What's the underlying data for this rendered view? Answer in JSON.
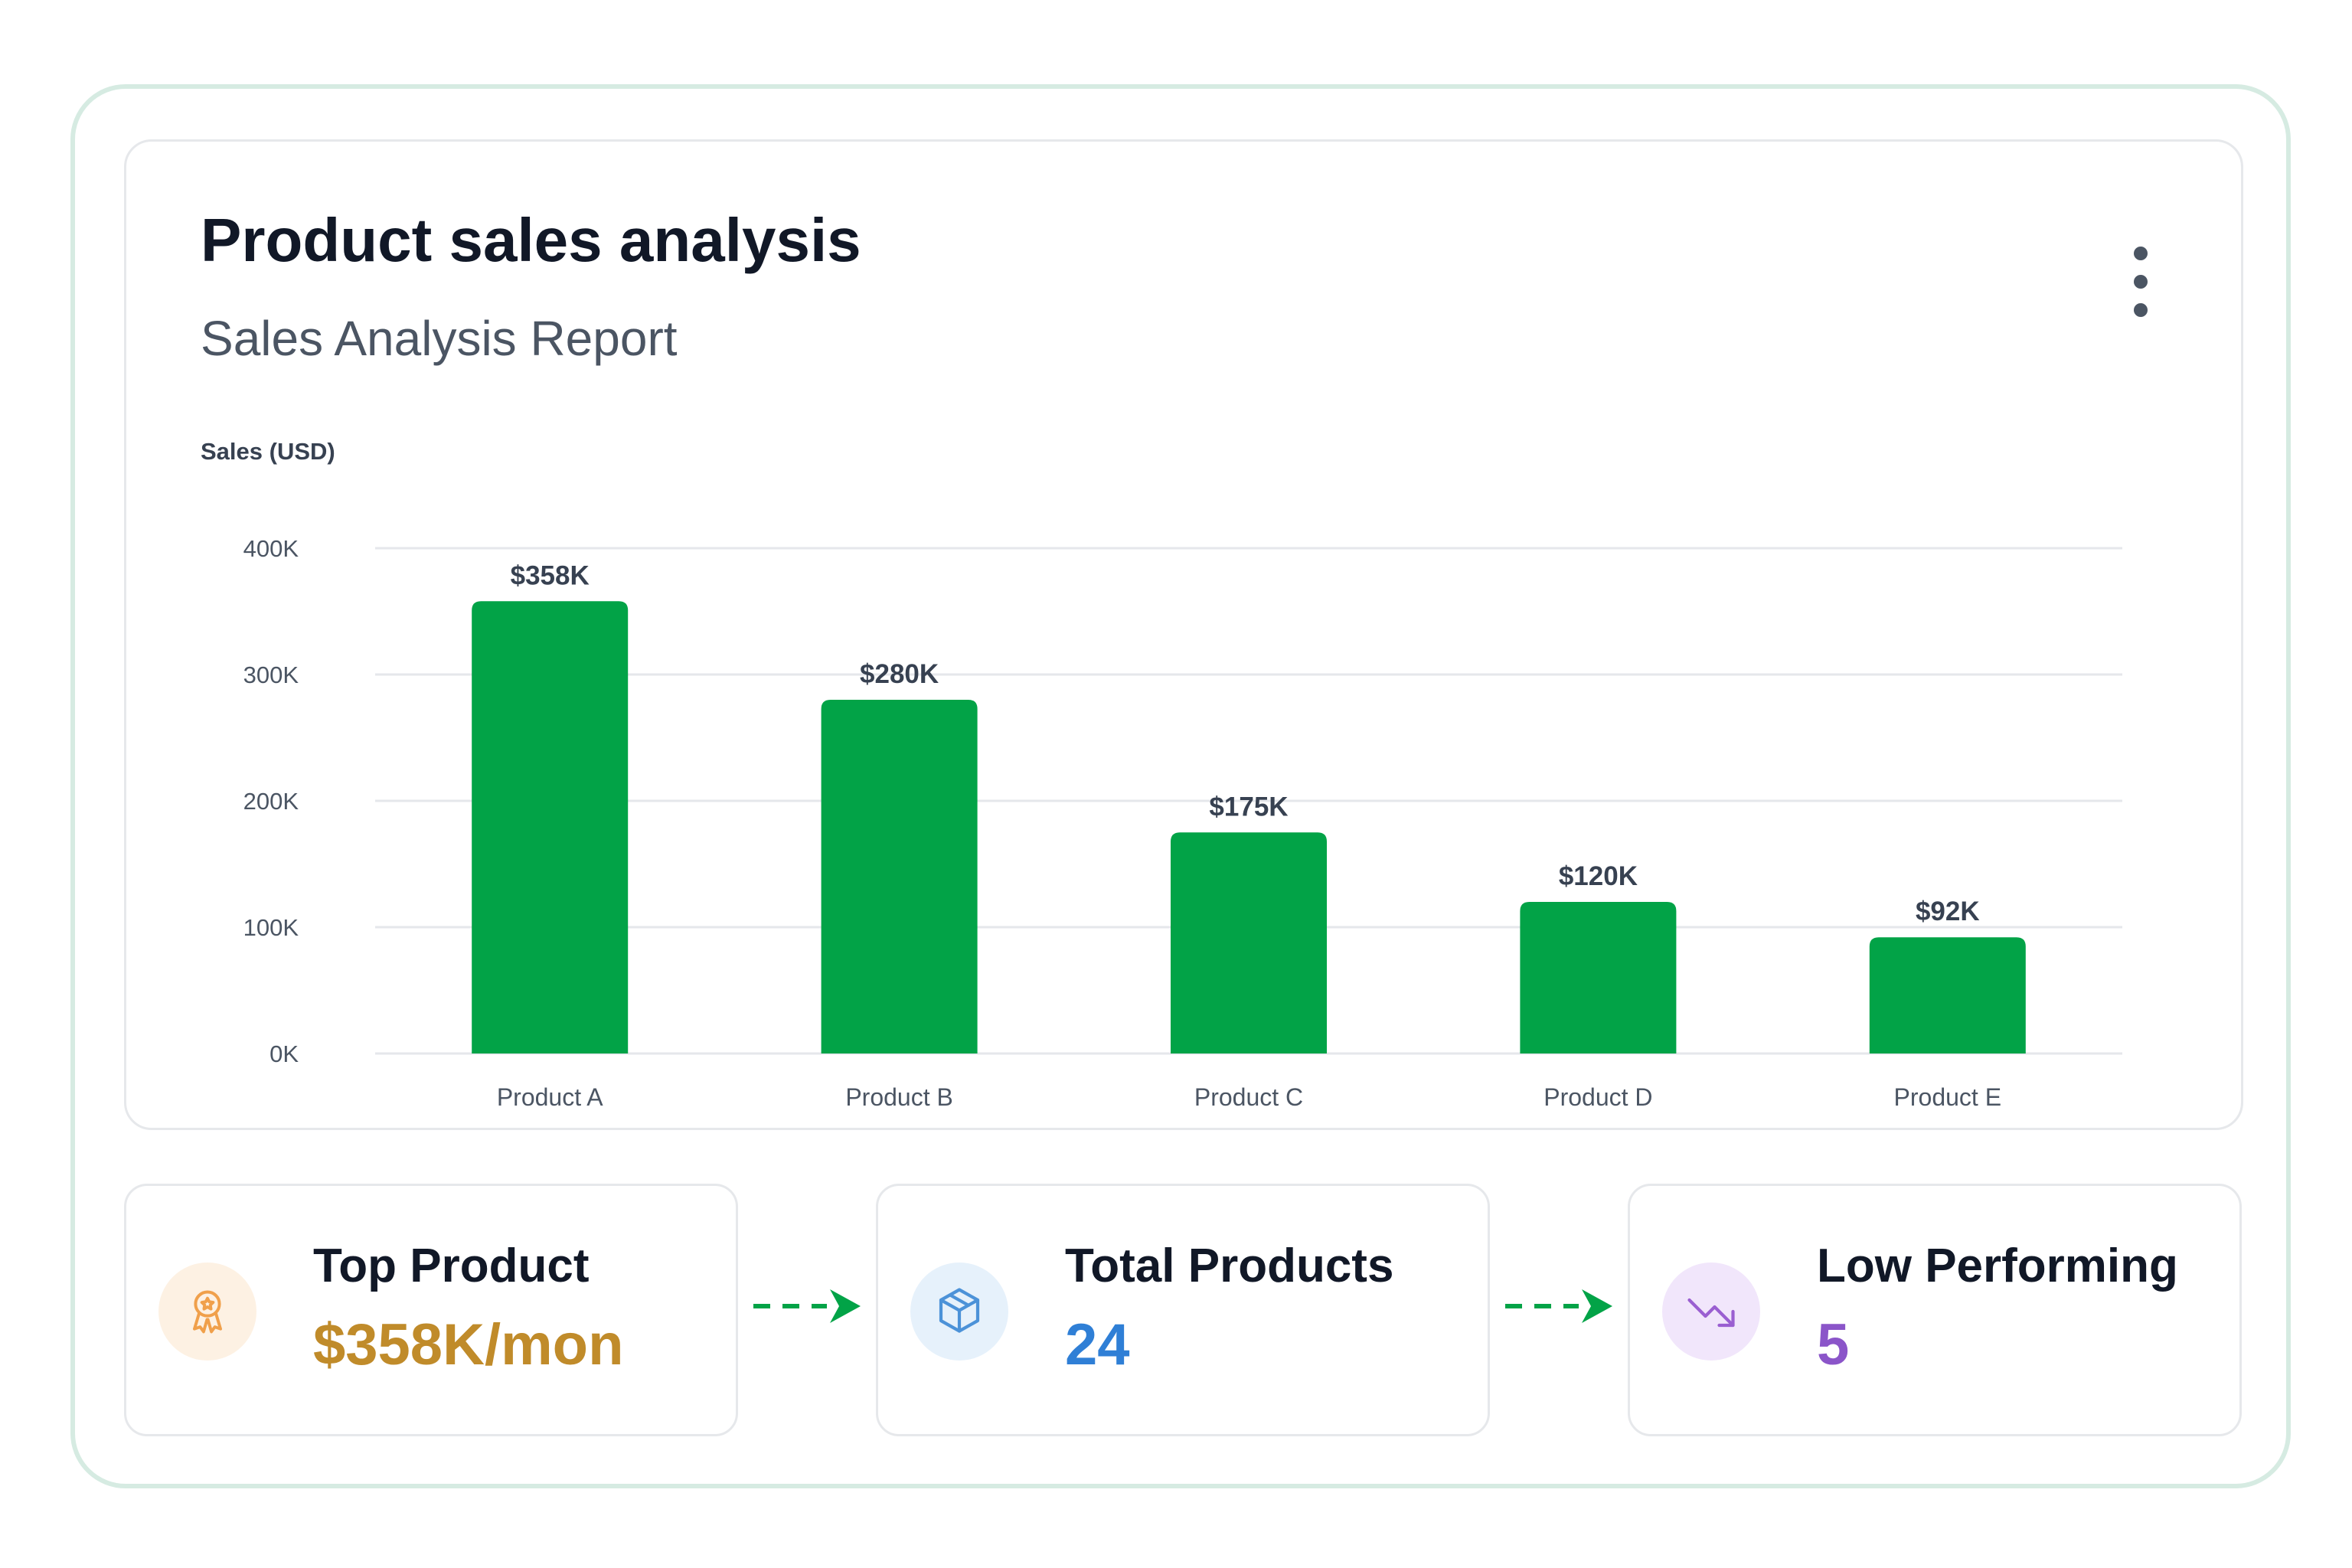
{
  "card": {
    "title": "Product sales analysis",
    "subtitle": "Sales Analysis Report",
    "menu_icon": "more-vertical-icon"
  },
  "chart_data": {
    "type": "bar",
    "ylabel": "Sales (USD)",
    "xlabel": "",
    "categories": [
      "Product A",
      "Product B",
      "Product C",
      "Product D",
      "Product E"
    ],
    "values": [
      358,
      280,
      175,
      120,
      92
    ],
    "value_labels": [
      "$358K",
      "$280K",
      "$175K",
      "$120K",
      "$92K"
    ],
    "value_unit": "K USD",
    "ylim": [
      0,
      400
    ],
    "yticks": [
      {
        "value": 0,
        "label": "0K"
      },
      {
        "value": 100,
        "label": "100K"
      },
      {
        "value": 200,
        "label": "200K"
      },
      {
        "value": 300,
        "label": "300K"
      },
      {
        "value": 400,
        "label": "400K"
      }
    ],
    "grid": true,
    "bar_color": "#02a347"
  },
  "stats": [
    {
      "label": "Top Product",
      "value": "$358K/mon",
      "icon": "award-icon",
      "value_color": "#c08b2a",
      "icon_bg": "#fdf1e3",
      "icon_color": "#f0a04b"
    },
    {
      "label": "Total Products",
      "value": "24",
      "icon": "package-icon",
      "value_color": "#2f7fd6",
      "icon_bg": "#e6f1fb",
      "icon_color": "#4c92d8"
    },
    {
      "label": "Low Performing",
      "value": "5",
      "icon": "trending-down-icon",
      "value_color": "#8b55c9",
      "icon_bg": "#f1e6fb",
      "icon_color": "#9a5fd1"
    }
  ],
  "connector_color": "#02a347"
}
